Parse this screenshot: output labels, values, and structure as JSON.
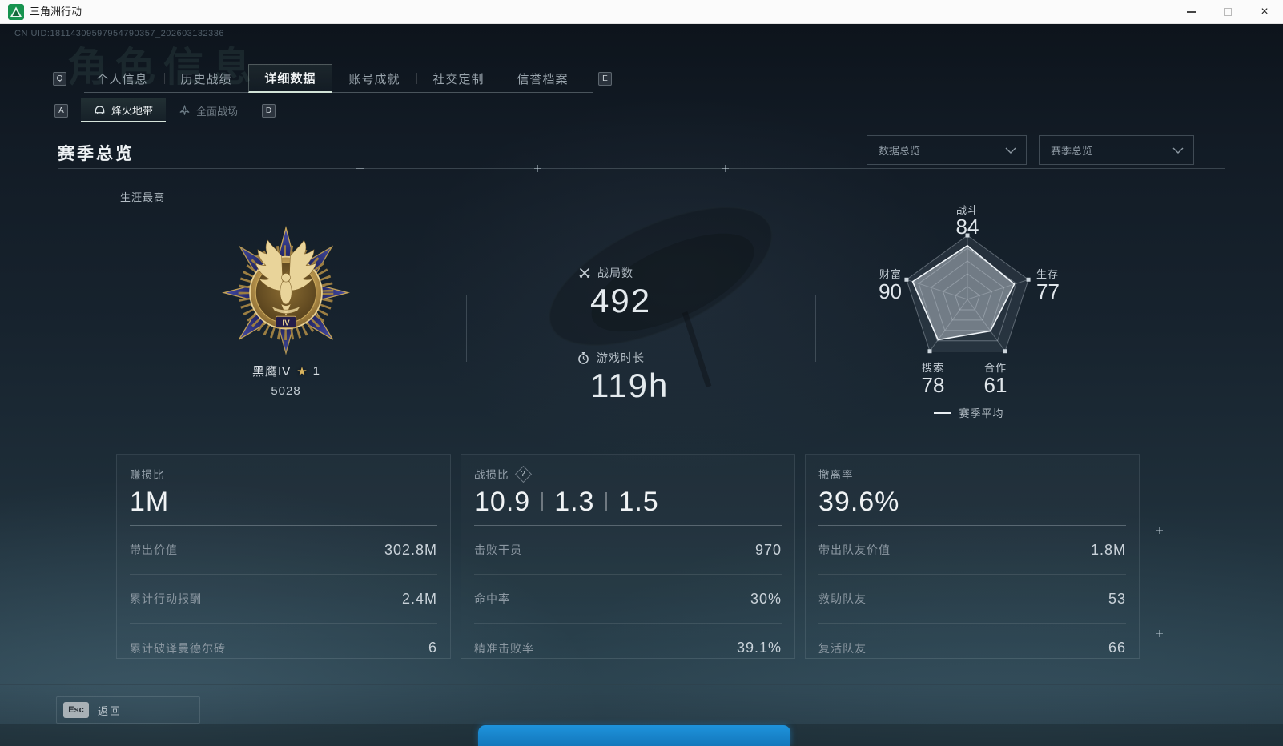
{
  "window": {
    "title": "三角洲行动"
  },
  "header": {
    "uid": "CN UID:18114309597954790357_202603132336",
    "ghost_title": "角色信息"
  },
  "tabs": {
    "key_left": "Q",
    "key_right": "E",
    "items": [
      {
        "label": "个人信息",
        "active": false
      },
      {
        "label": "历史战绩",
        "active": false
      },
      {
        "label": "详细数据",
        "active": true
      },
      {
        "label": "账号成就",
        "active": false
      },
      {
        "label": "社交定制",
        "active": false
      },
      {
        "label": "信誉档案",
        "active": false
      }
    ]
  },
  "subtabs": {
    "key_left": "A",
    "key_right": "D",
    "items": [
      {
        "label": "烽火地带",
        "active": true
      },
      {
        "label": "全面战场",
        "active": false
      }
    ]
  },
  "section": {
    "title": "赛季总览"
  },
  "filters": {
    "data_overview": "数据总览",
    "season_overview": "赛季总览"
  },
  "career": {
    "label": "生涯最高",
    "rank_name": "黑鹰IV",
    "star_glyph": "★",
    "star_count": "1",
    "points": "5028",
    "medal_tier": "IV"
  },
  "summary": {
    "battles": {
      "label": "战局数",
      "value": "492"
    },
    "playtime": {
      "label": "游戏时长",
      "value": "119h"
    }
  },
  "chart_data": {
    "type": "radar",
    "categories": [
      "战斗",
      "生存",
      "合作",
      "搜索",
      "财富"
    ],
    "values": [
      84,
      77,
      61,
      78,
      90
    ],
    "max": 100,
    "rings": 5,
    "legend": "赛季平均",
    "legend_position": "bottom",
    "grid": true
  },
  "cards": [
    {
      "title": "赚损比",
      "value": "1M",
      "rows": [
        {
          "label": "带出价值",
          "value": "302.8M"
        },
        {
          "label": "累计行动报酬",
          "value": "2.4M"
        },
        {
          "label": "累计破译曼德尔砖",
          "value": "6"
        }
      ]
    },
    {
      "title": "战损比",
      "help_glyph": "?",
      "value_parts": [
        "10.9",
        "1.3",
        "1.5"
      ],
      "rows": [
        {
          "label": "击败干员",
          "value": "970"
        },
        {
          "label": "命中率",
          "value": "30%"
        },
        {
          "label": "精准击败率",
          "value": "39.1%"
        }
      ]
    },
    {
      "title": "撤离率",
      "value": "39.6%",
      "rows": [
        {
          "label": "带出队友价值",
          "value": "1.8M"
        },
        {
          "label": "救助队友",
          "value": "53"
        },
        {
          "label": "复活队友",
          "value": "66"
        }
      ]
    }
  ],
  "footer": {
    "esc_key": "Esc",
    "back_label": "返回"
  },
  "colors": {
    "taskbar_highlight": "#1b8ed8",
    "active_tab_underline": "#d2e2d7",
    "medal_gold": "#d9b45e",
    "radar_stroke": "#eef3f7"
  },
  "icons": {
    "app_logo": "green-triangle",
    "battles": "crossed-swords",
    "playtime": "stopwatch",
    "subtab_active": "helmet",
    "subtab_inactive": "jet",
    "dropdown": "chevron-down",
    "help": "question-diamond"
  }
}
